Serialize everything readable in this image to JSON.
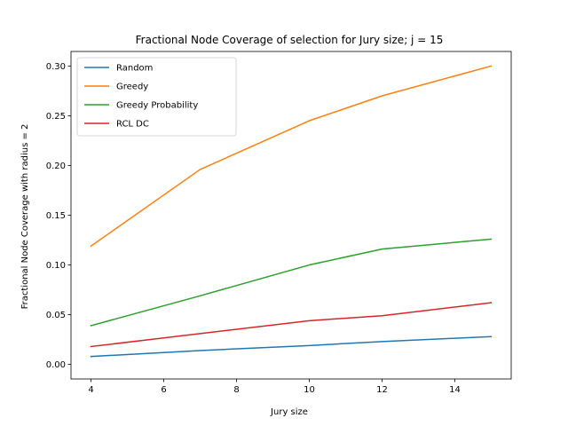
{
  "chart_data": {
    "type": "line",
    "title": "Fractional Node Coverage of selection for Jury size; j = 15",
    "xlabel": "Jury size",
    "ylabel": "Fractional Node Coverage with radius = 2",
    "x": [
      4,
      7,
      10,
      12,
      15
    ],
    "xticks": [
      "4",
      "6",
      "8",
      "10",
      "12",
      "14"
    ],
    "yticks": [
      "0.00",
      "0.05",
      "0.10",
      "0.15",
      "0.20",
      "0.25",
      "0.30"
    ],
    "xlim": [
      3.45,
      15.55
    ],
    "ylim": [
      -0.0146,
      0.3146
    ],
    "grid": false,
    "legend_position": "top-left",
    "series": [
      {
        "name": "Random",
        "color": "#1f77b4",
        "values": [
          0.008,
          0.014,
          0.019,
          0.023,
          0.028
        ]
      },
      {
        "name": "Greedy",
        "color": "#ff7f0e",
        "values": [
          0.119,
          0.196,
          0.245,
          0.27,
          0.3
        ]
      },
      {
        "name": "Greedy Probability",
        "color": "#2ca02c",
        "values": [
          0.039,
          0.069,
          0.1,
          0.116,
          0.126
        ]
      },
      {
        "name": "RCL DC",
        "color": "#d62728",
        "values": [
          0.018,
          0.031,
          0.044,
          0.049,
          0.062
        ]
      }
    ]
  }
}
